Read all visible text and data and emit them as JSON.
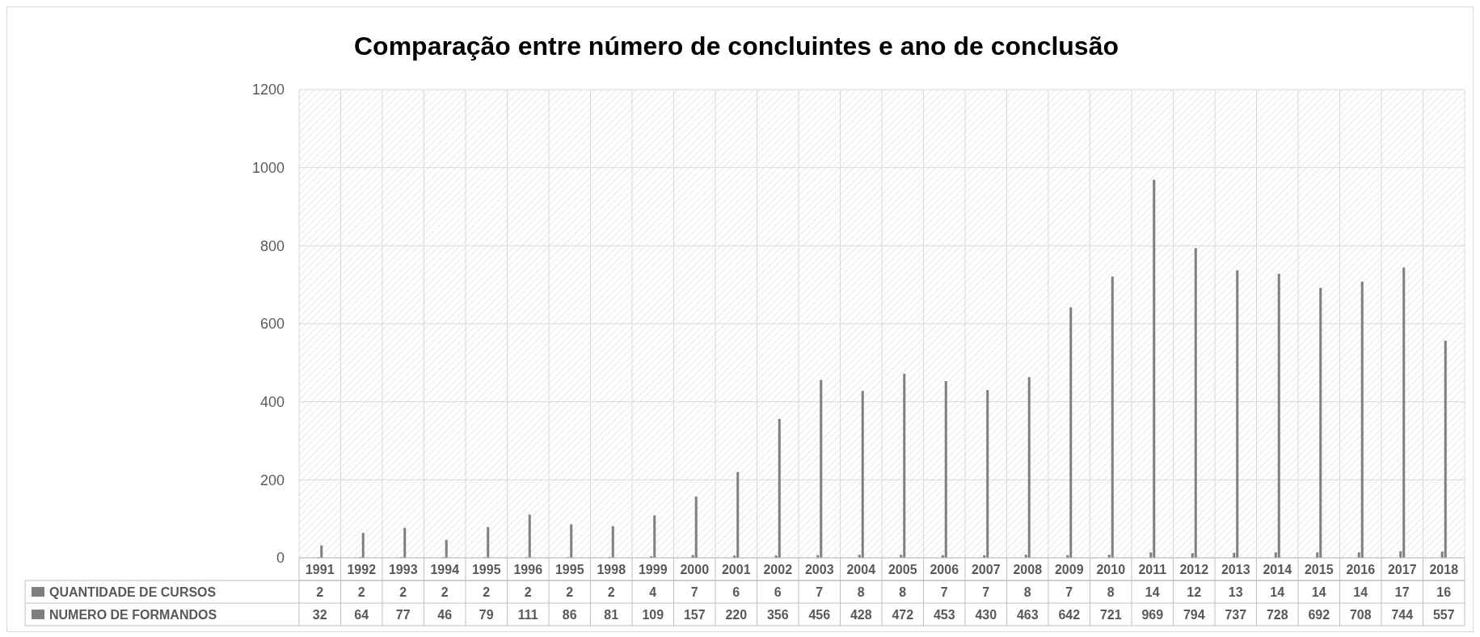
{
  "chart_data": {
    "type": "bar",
    "title": "Comparação entre  número de concluintes e ano de conclusão",
    "categories": [
      "1991",
      "1992",
      "1993",
      "1994",
      "1995",
      "1996",
      "1995",
      "1998",
      "1999",
      "2000",
      "2001",
      "2002",
      "2003",
      "2004",
      "2005",
      "2006",
      "2007",
      "2008",
      "2009",
      "2010",
      "2011",
      "2012",
      "2013",
      "2014",
      "2015",
      "2016",
      "2017",
      "2018"
    ],
    "series": [
      {
        "name": "QUANTIDADE DE CURSOS",
        "color": "#7f7f7f",
        "values": [
          2,
          2,
          2,
          2,
          2,
          2,
          2,
          2,
          4,
          7,
          6,
          6,
          7,
          8,
          8,
          7,
          7,
          8,
          7,
          8,
          14,
          12,
          13,
          14,
          14,
          14,
          17,
          16
        ]
      },
      {
        "name": "NUMERO DE FORMANDOS",
        "color": "#7f7f7f",
        "values": [
          32,
          64,
          77,
          46,
          79,
          111,
          86,
          81,
          109,
          157,
          220,
          356,
          456,
          428,
          472,
          453,
          430,
          463,
          642,
          721,
          969,
          794,
          737,
          728,
          692,
          708,
          744,
          557
        ]
      }
    ],
    "ylim": [
      0,
      1200
    ],
    "yticks": [
      0,
      200,
      400,
      600,
      800,
      1000,
      1200
    ],
    "grid": true,
    "legend": "bottom",
    "data_labels": true
  }
}
